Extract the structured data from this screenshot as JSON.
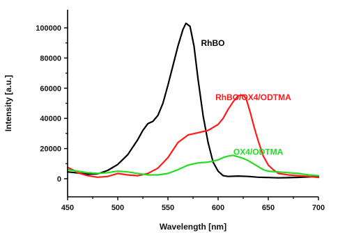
{
  "chart_data": {
    "type": "line",
    "xlabel": "Wavelength [nm]",
    "ylabel": "Intensity [a.u.]",
    "xlim": [
      450,
      700
    ],
    "ylim": [
      -12000,
      112000
    ],
    "x_ticks": [
      450,
      500,
      550,
      600,
      650,
      700
    ],
    "y_ticks": [
      0,
      20000,
      40000,
      60000,
      80000,
      100000
    ],
    "x_tick_labels": [
      "450",
      "500",
      "550",
      "600",
      "650",
      "700"
    ],
    "y_tick_labels": [
      "0",
      "20000",
      "40000",
      "60000",
      "80000",
      "100000"
    ],
    "grid": false,
    "series": [
      {
        "name": "RhBO",
        "color": "#000000",
        "points": [
          [
            450,
            4500
          ],
          [
            460,
            3800
          ],
          [
            470,
            3000
          ],
          [
            480,
            3200
          ],
          [
            490,
            5500
          ],
          [
            500,
            9500
          ],
          [
            510,
            16000
          ],
          [
            520,
            26000
          ],
          [
            525,
            32000
          ],
          [
            530,
            36500
          ],
          [
            535,
            38000
          ],
          [
            540,
            42000
          ],
          [
            545,
            50000
          ],
          [
            550,
            62000
          ],
          [
            555,
            75000
          ],
          [
            560,
            88000
          ],
          [
            565,
            99000
          ],
          [
            568,
            103000
          ],
          [
            572,
            101000
          ],
          [
            576,
            88000
          ],
          [
            580,
            66000
          ],
          [
            585,
            42000
          ],
          [
            590,
            24000
          ],
          [
            595,
            11000
          ],
          [
            600,
            5000
          ],
          [
            605,
            2000
          ],
          [
            610,
            1500
          ],
          [
            620,
            1800
          ],
          [
            630,
            1500
          ],
          [
            640,
            1000
          ],
          [
            650,
            800
          ],
          [
            660,
            600
          ],
          [
            670,
            700
          ],
          [
            680,
            900
          ],
          [
            690,
            1200
          ],
          [
            700,
            1500
          ]
        ]
      },
      {
        "name": "RhBO/OX4/ODTMA",
        "color": "#ff1a1a",
        "points": [
          [
            450,
            7500
          ],
          [
            455,
            6000
          ],
          [
            460,
            4000
          ],
          [
            470,
            2000
          ],
          [
            480,
            1000
          ],
          [
            490,
            1500
          ],
          [
            500,
            3500
          ],
          [
            510,
            2500
          ],
          [
            520,
            2000
          ],
          [
            530,
            3500
          ],
          [
            540,
            7000
          ],
          [
            550,
            14000
          ],
          [
            560,
            24000
          ],
          [
            570,
            29000
          ],
          [
            580,
            30500
          ],
          [
            590,
            32000
          ],
          [
            600,
            36000
          ],
          [
            605,
            40000
          ],
          [
            610,
            46000
          ],
          [
            615,
            51000
          ],
          [
            620,
            55000
          ],
          [
            625,
            55500
          ],
          [
            628,
            53000
          ],
          [
            632,
            44000
          ],
          [
            636,
            34000
          ],
          [
            640,
            25000
          ],
          [
            645,
            15000
          ],
          [
            650,
            9000
          ],
          [
            655,
            6000
          ],
          [
            660,
            3500
          ],
          [
            670,
            2500
          ],
          [
            680,
            2000
          ],
          [
            690,
            1500
          ],
          [
            700,
            800
          ]
        ]
      },
      {
        "name": "OX4/ODTMA",
        "color": "#22dd22",
        "points": [
          [
            450,
            6000
          ],
          [
            460,
            5000
          ],
          [
            470,
            4000
          ],
          [
            480,
            3500
          ],
          [
            490,
            4000
          ],
          [
            500,
            5000
          ],
          [
            510,
            4500
          ],
          [
            520,
            3500
          ],
          [
            530,
            2500
          ],
          [
            540,
            2500
          ],
          [
            550,
            3500
          ],
          [
            560,
            6000
          ],
          [
            570,
            9000
          ],
          [
            580,
            10500
          ],
          [
            590,
            11000
          ],
          [
            600,
            12500
          ],
          [
            605,
            14000
          ],
          [
            610,
            15000
          ],
          [
            615,
            15500
          ],
          [
            620,
            14500
          ],
          [
            625,
            13500
          ],
          [
            630,
            12000
          ],
          [
            635,
            10000
          ],
          [
            640,
            8000
          ],
          [
            645,
            6000
          ],
          [
            650,
            5000
          ],
          [
            660,
            4500
          ],
          [
            670,
            4000
          ],
          [
            680,
            3500
          ],
          [
            690,
            2500
          ],
          [
            700,
            2000
          ]
        ]
      }
    ]
  }
}
